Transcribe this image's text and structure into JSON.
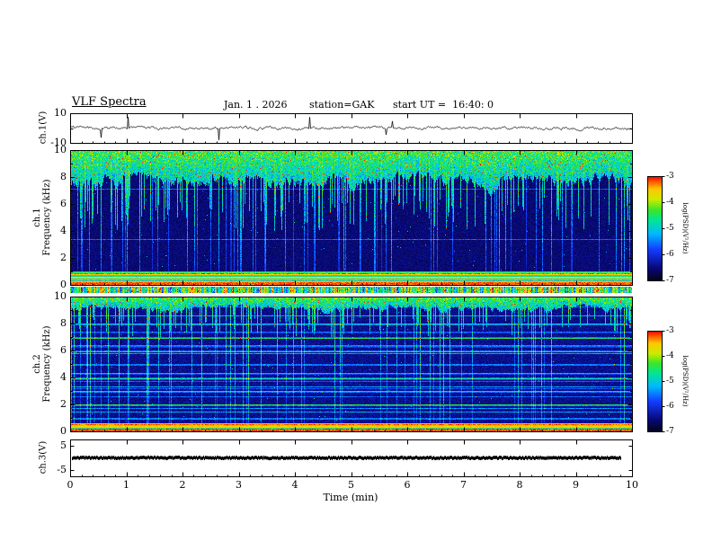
{
  "header": {
    "title": "VLF Spectra",
    "date": "Jan. 1 . 2026",
    "station": "station=GAK",
    "start_ut": "start UT =  16:40: 0"
  },
  "xaxis": {
    "label": "Time (min)",
    "min": 0,
    "max": 10,
    "tick_labels": [
      "0",
      "1",
      "2",
      "3",
      "4",
      "5",
      "6",
      "7",
      "8",
      "9",
      "10"
    ],
    "tick_values": [
      0,
      1,
      2,
      3,
      4,
      5,
      6,
      7,
      8,
      9,
      10
    ]
  },
  "panels": {
    "ch1_wave": {
      "ylabel": "ch.1(V)",
      "ytick_labels": [
        "10",
        "-10"
      ],
      "ytick_values": [
        10,
        -10
      ],
      "ylim": [
        -10,
        10
      ]
    },
    "ch1_spec": {
      "ylabel_ch": "ch.1",
      "ylabel_freq": "Frequency (kHz)",
      "ytick_labels": [
        "10",
        "8",
        "6",
        "4",
        "2",
        "0"
      ],
      "ytick_values": [
        10,
        8,
        6,
        4,
        2,
        0
      ],
      "ylim": [
        0,
        10
      ]
    },
    "ch2_spec": {
      "ylabel_ch": "ch.2",
      "ylabel_freq": "Frequency (kHz)",
      "ytick_labels": [
        "10",
        "8",
        "6",
        "4",
        "2",
        "0"
      ],
      "ytick_values": [
        10,
        8,
        6,
        4,
        2,
        0
      ],
      "ylim": [
        0,
        10
      ]
    },
    "ch3_wave": {
      "ylabel": "ch.3(V)",
      "ytick_labels": [
        "5",
        "-5"
      ],
      "ytick_values": [
        5,
        -5
      ],
      "ylim": [
        -5,
        5
      ]
    }
  },
  "colorbars": {
    "label": "log(PSD)(V²/Hz)",
    "tick_labels": [
      "-3",
      "-4",
      "-5",
      "-6",
      "-7"
    ],
    "tick_values": [
      -3,
      -4,
      -5,
      -6,
      -7
    ],
    "min": -7,
    "max": -3
  },
  "chart_data": [
    {
      "type": "line",
      "name": "ch1_waveform",
      "ylabel": "ch.1(V)",
      "xlabel": "Time (min)",
      "xlim": [
        0,
        10
      ],
      "ylim": [
        -10,
        10
      ],
      "description": "Broadband noise waveform centered on 0 V, amplitude mostly within ±2 V, with frequent impulsive spikes reaching roughly ±8 V throughout the 10-minute record."
    },
    {
      "type": "heatmap",
      "name": "ch1_spectrogram",
      "ylabel": "ch.1 Frequency (kHz)",
      "xlabel": "Time (min)",
      "xlim": [
        0,
        10
      ],
      "ylim": [
        0,
        10
      ],
      "zlabel": "log(PSD)(V²/Hz)",
      "zlim": [
        -7,
        -3
      ],
      "features": [
        "High PSD band (green/yellow, about -4 to -3.5) above ~7-8 kHz for the entire record with red specks",
        "Dense vertical impulsive streaks (cyan/green fingers) extending down from the top band through 1-8 kHz, quasi-continuous in time",
        "Low background PSD (dark blue/near black, about -6.5 to -7) between 2-7 kHz",
        "Bright horizontal banding (red/yellow/green, about -3.5 to -3) below ~1 kHz (hum harmonics), red line at the very bottom"
      ]
    },
    {
      "type": "heatmap",
      "name": "ch2_spectrogram",
      "ylabel": "ch.2 Frequency (kHz)",
      "xlabel": "Time (min)",
      "xlim": [
        0,
        10
      ],
      "ylim": [
        0,
        10
      ],
      "zlabel": "log(PSD)(V²/Hz)",
      "zlim": [
        -7,
        -3
      ],
      "features": [
        "Thinner, patchier high-PSD green band above ~9 kHz",
        "Vertical impulsive cyan/blue streaks spanning the full 0-10 kHz range",
        "Pronounced horizontal blue/cyan striping at roughly every 1 kHz between 0-5 kHz",
        "Bright narrow horizontal band (yellow/red) below ~0.5 kHz"
      ]
    },
    {
      "type": "line",
      "name": "ch3_waveform",
      "ylabel": "ch.3(V)",
      "xlabel": "Time (min)",
      "xlim": [
        0,
        10
      ],
      "ylim": [
        -5,
        5
      ],
      "description": "Essentially constant thick trace at ~0 V for the full 10-minute record (flat/saturated channel)."
    }
  ]
}
